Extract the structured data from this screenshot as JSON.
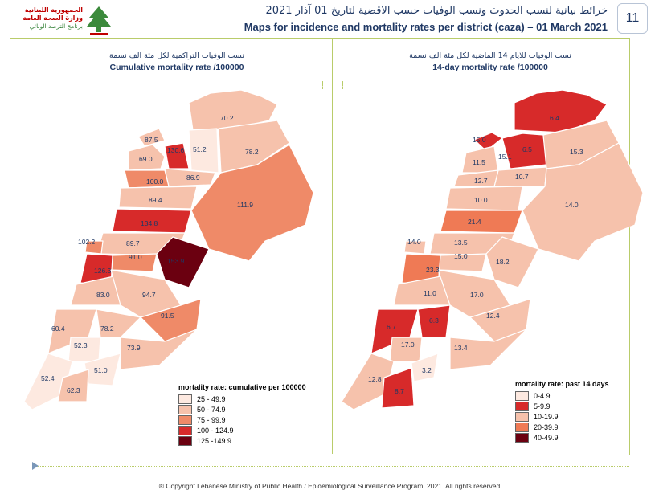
{
  "header": {
    "logo_line1": "الجمهورية اللبنانية",
    "logo_line2": "وزارة الصحة العامة",
    "logo_line3": "برنامج الترصد الوبائي",
    "title_ar": "خرائط بيانية لنسب الحدوث ونسب الوفيات حسب الاقضية لتاريخ 01 آذار 2021",
    "title_en": "Maps for incidence and mortality rates per district (caza) – 01 March 2021",
    "page_number": "11"
  },
  "left_map": {
    "title_ar": "نسب الوفيات التراكمية لكل مئة الف نسمة",
    "title_en": "Cumulative mortality rate /100000",
    "legend_title": "mortality rate: cumulative per 100000",
    "legend": [
      {
        "label": "25 - 49.9",
        "color": "#fde9e0"
      },
      {
        "label": "50 - 74.9",
        "color": "#f6c2ac"
      },
      {
        "label": "75 - 99.9",
        "color": "#ef8a68"
      },
      {
        "label": "100 - 124.9",
        "color": "#d72a2a"
      },
      {
        "label": "125 -149.9",
        "color": "#6b0010"
      }
    ],
    "values": [
      "70.2",
      "87.5",
      "130.6",
      "51.2",
      "78.2",
      "69.0",
      "86.9",
      "100.0",
      "89.4",
      "111.9",
      "134.8",
      "102.2",
      "89.7",
      "91.0",
      "153.9",
      "126.3",
      "83.0",
      "94.7",
      "91.5",
      "60.4",
      "78.2",
      "52.3",
      "73.9",
      "52.4",
      "51.0",
      "62.3"
    ]
  },
  "right_map": {
    "title_ar": "نسب الوفيات للايام 14 الماضية لكل مئة الف نسمة",
    "title_en": "14-day mortality rate /100000",
    "legend_title": "mortality rate: past 14 days",
    "legend": [
      {
        "label": "0-4.9",
        "color": "#fde9e0"
      },
      {
        "label": "5-9.9",
        "color": "#d72a2a"
      },
      {
        "label": "10-19.9",
        "color": "#f6c2ac"
      },
      {
        "label": "20-39.9",
        "color": "#ef7a55"
      },
      {
        "label": "40-49.9",
        "color": "#6b0010"
      }
    ],
    "values": [
      "6.4",
      "15.0",
      "6.5",
      "15.3",
      "11.5",
      "15.1",
      "12.7",
      "10.7",
      "10.0",
      "14.0",
      "21.4",
      "14.0",
      "13.5",
      "15.0",
      "18.2",
      "23.3",
      "11.0",
      "17.0",
      "12.4",
      "6.7",
      "6.3",
      "17.0",
      "13.4",
      "12.8",
      "3.2",
      "8.7"
    ]
  },
  "footer": {
    "copyright": "® Copyright Lebanese Ministry of Public Health / Epidemiological Surveillance Program, 2021. All rights reserved"
  }
}
